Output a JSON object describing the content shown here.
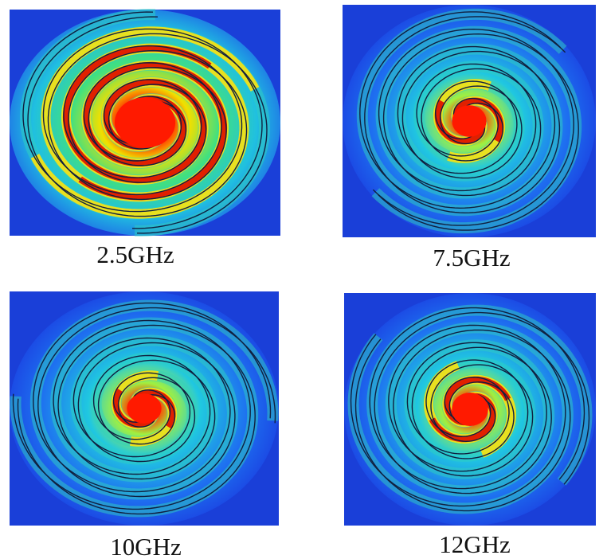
{
  "panels": [
    {
      "label": "2.5GHz"
    },
    {
      "label": "7.5GHz"
    },
    {
      "label": "10GHz"
    },
    {
      "label": "12GHz"
    }
  ]
}
